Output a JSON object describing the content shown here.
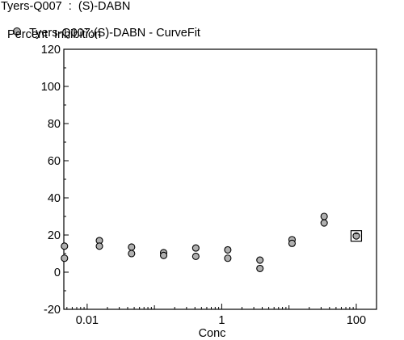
{
  "chart_data": {
    "type": "scatter",
    "title": "Tyers-Q007  :  (S)-DABN",
    "legend": [
      {
        "label": "Tyers-Q007:(S)-DABN - CurveFit",
        "marker": "circle",
        "color": "#b0b0b0"
      }
    ],
    "ylabel": "Percent  Inhibition",
    "xlabel": "Conc",
    "x_scale": "log",
    "xlim": [
      0.0045,
      200
    ],
    "ylim": [
      -20,
      120
    ],
    "y_ticks": [
      "-20",
      "0",
      "20",
      "40",
      "60",
      "80",
      "100",
      "120"
    ],
    "x_ticks": [
      "0.01",
      "1",
      "100"
    ],
    "series": [
      {
        "name": "Tyers-Q007:(S)-DABN - CurveFit",
        "points": [
          {
            "x": 0.0046,
            "y": 14
          },
          {
            "x": 0.0046,
            "y": 7.5
          },
          {
            "x": 0.0152,
            "y": 17
          },
          {
            "x": 0.0152,
            "y": 14
          },
          {
            "x": 0.0457,
            "y": 13.5
          },
          {
            "x": 0.0457,
            "y": 10
          },
          {
            "x": 0.137,
            "y": 10.5
          },
          {
            "x": 0.137,
            "y": 9
          },
          {
            "x": 0.412,
            "y": 13
          },
          {
            "x": 0.412,
            "y": 8.5
          },
          {
            "x": 1.23,
            "y": 12
          },
          {
            "x": 1.23,
            "y": 7.5
          },
          {
            "x": 3.7,
            "y": 6.5
          },
          {
            "x": 3.7,
            "y": 2
          },
          {
            "x": 11.1,
            "y": 17.5
          },
          {
            "x": 11.1,
            "y": 15.5
          },
          {
            "x": 33.3,
            "y": 30
          },
          {
            "x": 33.3,
            "y": 26.5
          }
        ],
        "color": "#b0b0b0"
      }
    ],
    "outlier_points": [
      {
        "x": 100,
        "y": 19.5,
        "marker": "square"
      }
    ],
    "grid": false
  }
}
